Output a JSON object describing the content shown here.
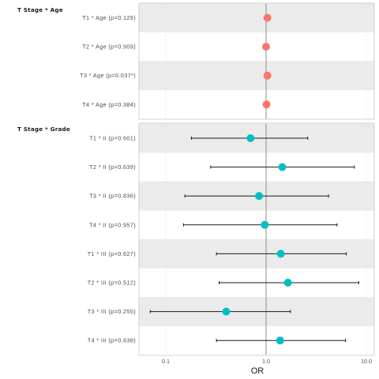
{
  "colors": {
    "age_points": "#F8766D",
    "grade_points": "#00BFC4",
    "band_fill": "#EBEBEB",
    "panel_border": "#C8C8C8",
    "grid": "#DCDCDC",
    "ref_line": "#8C8C8C",
    "error_bar": "#1A1A1A"
  },
  "chart_data": {
    "type": "scatter",
    "subtype": "forest-plot",
    "xlabel": "OR",
    "x_scale": "log10",
    "xlim": [
      0.055,
      11.5
    ],
    "x_ticks": [
      "0.1",
      "1.0",
      "10.0"
    ],
    "x_tick_values": [
      0.1,
      1.0,
      10.0
    ],
    "reference_line": 1.0,
    "grid": "vertical dashed",
    "panels": [
      {
        "title": "T Stage * Age",
        "color_key": "age_points",
        "rows": [
          {
            "label": "T1 * Age (p=0.129)",
            "or": 1.03,
            "lower": 1.03,
            "upper": 1.03
          },
          {
            "label": "T2 * Age (p=0.909)",
            "or": 1.0,
            "lower": 1.0,
            "upper": 1.0
          },
          {
            "label": "T3 * Age (p=0.037*)",
            "or": 1.03,
            "lower": 1.03,
            "upper": 1.03
          },
          {
            "label": "T4 * Age (p=0.384)",
            "or": 1.01,
            "lower": 1.01,
            "upper": 1.01
          }
        ]
      },
      {
        "title": "T Stage * Grade",
        "color_key": "grade_points",
        "rows": [
          {
            "label": "T1 * II (p=0.601)",
            "or": 0.7,
            "lower": 0.18,
            "upper": 2.6
          },
          {
            "label": "T2 * II (p=0.639)",
            "or": 1.45,
            "lower": 0.28,
            "upper": 7.6
          },
          {
            "label": "T3 * II (p=0.836)",
            "or": 0.85,
            "lower": 0.155,
            "upper": 4.2
          },
          {
            "label": "T4 * II (p=0.957)",
            "or": 0.97,
            "lower": 0.15,
            "upper": 5.1
          },
          {
            "label": "T1 * III (p=0.627)",
            "or": 1.4,
            "lower": 0.32,
            "upper": 6.3
          },
          {
            "label": "T2 * III (p=0.512)",
            "or": 1.65,
            "lower": 0.34,
            "upper": 8.4
          },
          {
            "label": "T3 * III (p=0.255)",
            "or": 0.4,
            "lower": 0.07,
            "upper": 1.75
          },
          {
            "label": "T4 * III (p=0.638)",
            "or": 1.38,
            "lower": 0.32,
            "upper": 6.2
          }
        ]
      }
    ]
  }
}
